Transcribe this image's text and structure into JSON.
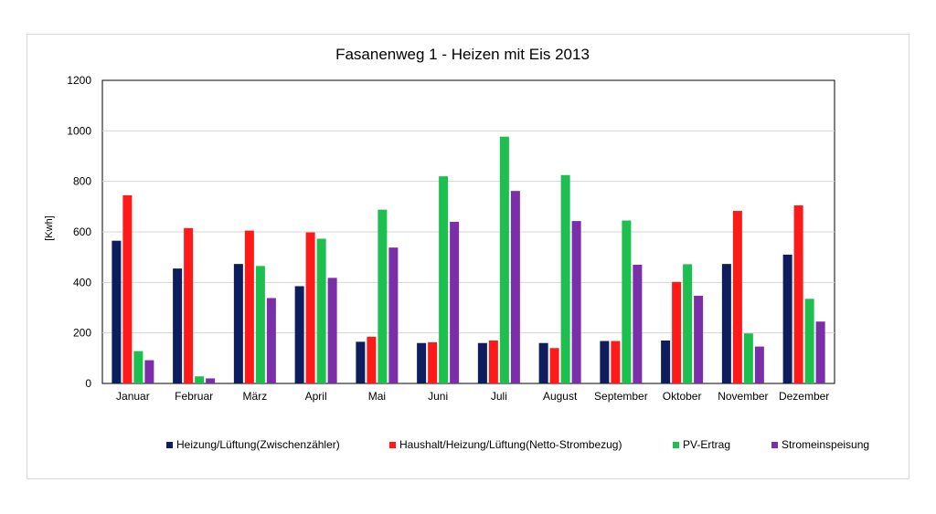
{
  "chart_data": {
    "type": "bar",
    "title": "Fasanenweg 1 - Heizen mit Eis 2013",
    "ylabel": "[Kwh]",
    "xlabel": "",
    "ylim": [
      0,
      1200
    ],
    "yticks": [
      0,
      200,
      400,
      600,
      800,
      1000,
      1200
    ],
    "grid": true,
    "legend_position": "bottom",
    "categories": [
      "Januar",
      "Februar",
      "März",
      "April",
      "Mai",
      "Juni",
      "Juli",
      "August",
      "September",
      "Oktober",
      "November",
      "Dezember"
    ],
    "series": [
      {
        "name": "Heizung/Lüftung(Zwischenzähler)",
        "color": "#0d1d5e",
        "values": [
          565,
          455,
          473,
          385,
          165,
          160,
          160,
          160,
          168,
          170,
          473,
          510
        ]
      },
      {
        "name": "Haushalt/Heizung/Lüftung(Netto-Strombezug)",
        "color": "#ff1a1a",
        "values": [
          745,
          615,
          605,
          598,
          185,
          163,
          170,
          140,
          168,
          402,
          683,
          705
        ]
      },
      {
        "name": "PV-Ertrag",
        "color": "#1dbf4f",
        "values": [
          128,
          28,
          465,
          573,
          688,
          820,
          977,
          825,
          645,
          472,
          198,
          335
        ]
      },
      {
        "name": "Stromeinspeisung",
        "color": "#7a2fa8",
        "values": [
          92,
          20,
          338,
          418,
          538,
          640,
          762,
          643,
          470,
          347,
          146,
          245
        ]
      }
    ]
  }
}
